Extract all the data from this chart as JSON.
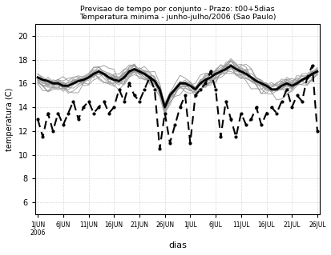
{
  "title_line1": "Previsao de tempo por conjunto - Prazo: t00+5dias",
  "title_line2": "Temperatura minima - junho-julho/2006 (Sao Paulo)",
  "xlabel": "dias",
  "ylabel": "temperatura (C)",
  "ylim": [
    5,
    21
  ],
  "yticks": [
    6,
    8,
    10,
    12,
    14,
    16,
    18,
    20
  ],
  "xtick_labels": [
    "1JUN\n2006",
    "6JUN",
    "11JUN",
    "16JUN",
    "21JUN",
    "26JUN",
    "1JUL",
    "6JUL",
    "11JUL",
    "16JUL",
    "21JUL",
    "26JUL"
  ],
  "n_days": 56,
  "member_color": "#999999",
  "ensemble_mean_color": "#000000",
  "obs_color": "#000000",
  "background": "#ffffff",
  "grid_color": "#bbbbbb",
  "obs_data": [
    13.0,
    11.5,
    13.5,
    12.0,
    13.5,
    12.5,
    13.5,
    14.5,
    13.0,
    14.0,
    14.5,
    13.5,
    14.0,
    14.5,
    13.5,
    14.0,
    15.5,
    14.5,
    16.0,
    15.0,
    14.5,
    15.5,
    16.5,
    15.5,
    10.5,
    13.5,
    11.0,
    12.5,
    14.0,
    15.0,
    11.0,
    15.0,
    15.5,
    16.0,
    17.0,
    15.5,
    11.5,
    14.5,
    13.0,
    11.5,
    13.5,
    12.5,
    13.0,
    14.0,
    12.5,
    13.5,
    14.0,
    13.5,
    14.5,
    15.5,
    14.0,
    15.0,
    14.5,
    16.5,
    17.5,
    12.0
  ],
  "ens_mean_data": [
    16.5,
    16.3,
    16.2,
    16.0,
    16.0,
    15.8,
    15.8,
    16.0,
    16.2,
    16.3,
    16.5,
    16.8,
    17.0,
    16.8,
    16.5,
    16.3,
    16.2,
    16.5,
    17.0,
    17.2,
    17.0,
    16.8,
    16.5,
    16.2,
    15.5,
    14.0,
    15.0,
    15.5,
    16.0,
    16.0,
    15.8,
    15.5,
    16.0,
    16.3,
    16.5,
    16.8,
    17.0,
    17.2,
    17.5,
    17.2,
    17.0,
    16.8,
    16.5,
    16.2,
    16.0,
    15.8,
    15.5,
    15.5,
    15.8,
    16.0,
    15.8,
    16.0,
    16.3,
    16.5,
    16.8,
    17.0
  ]
}
